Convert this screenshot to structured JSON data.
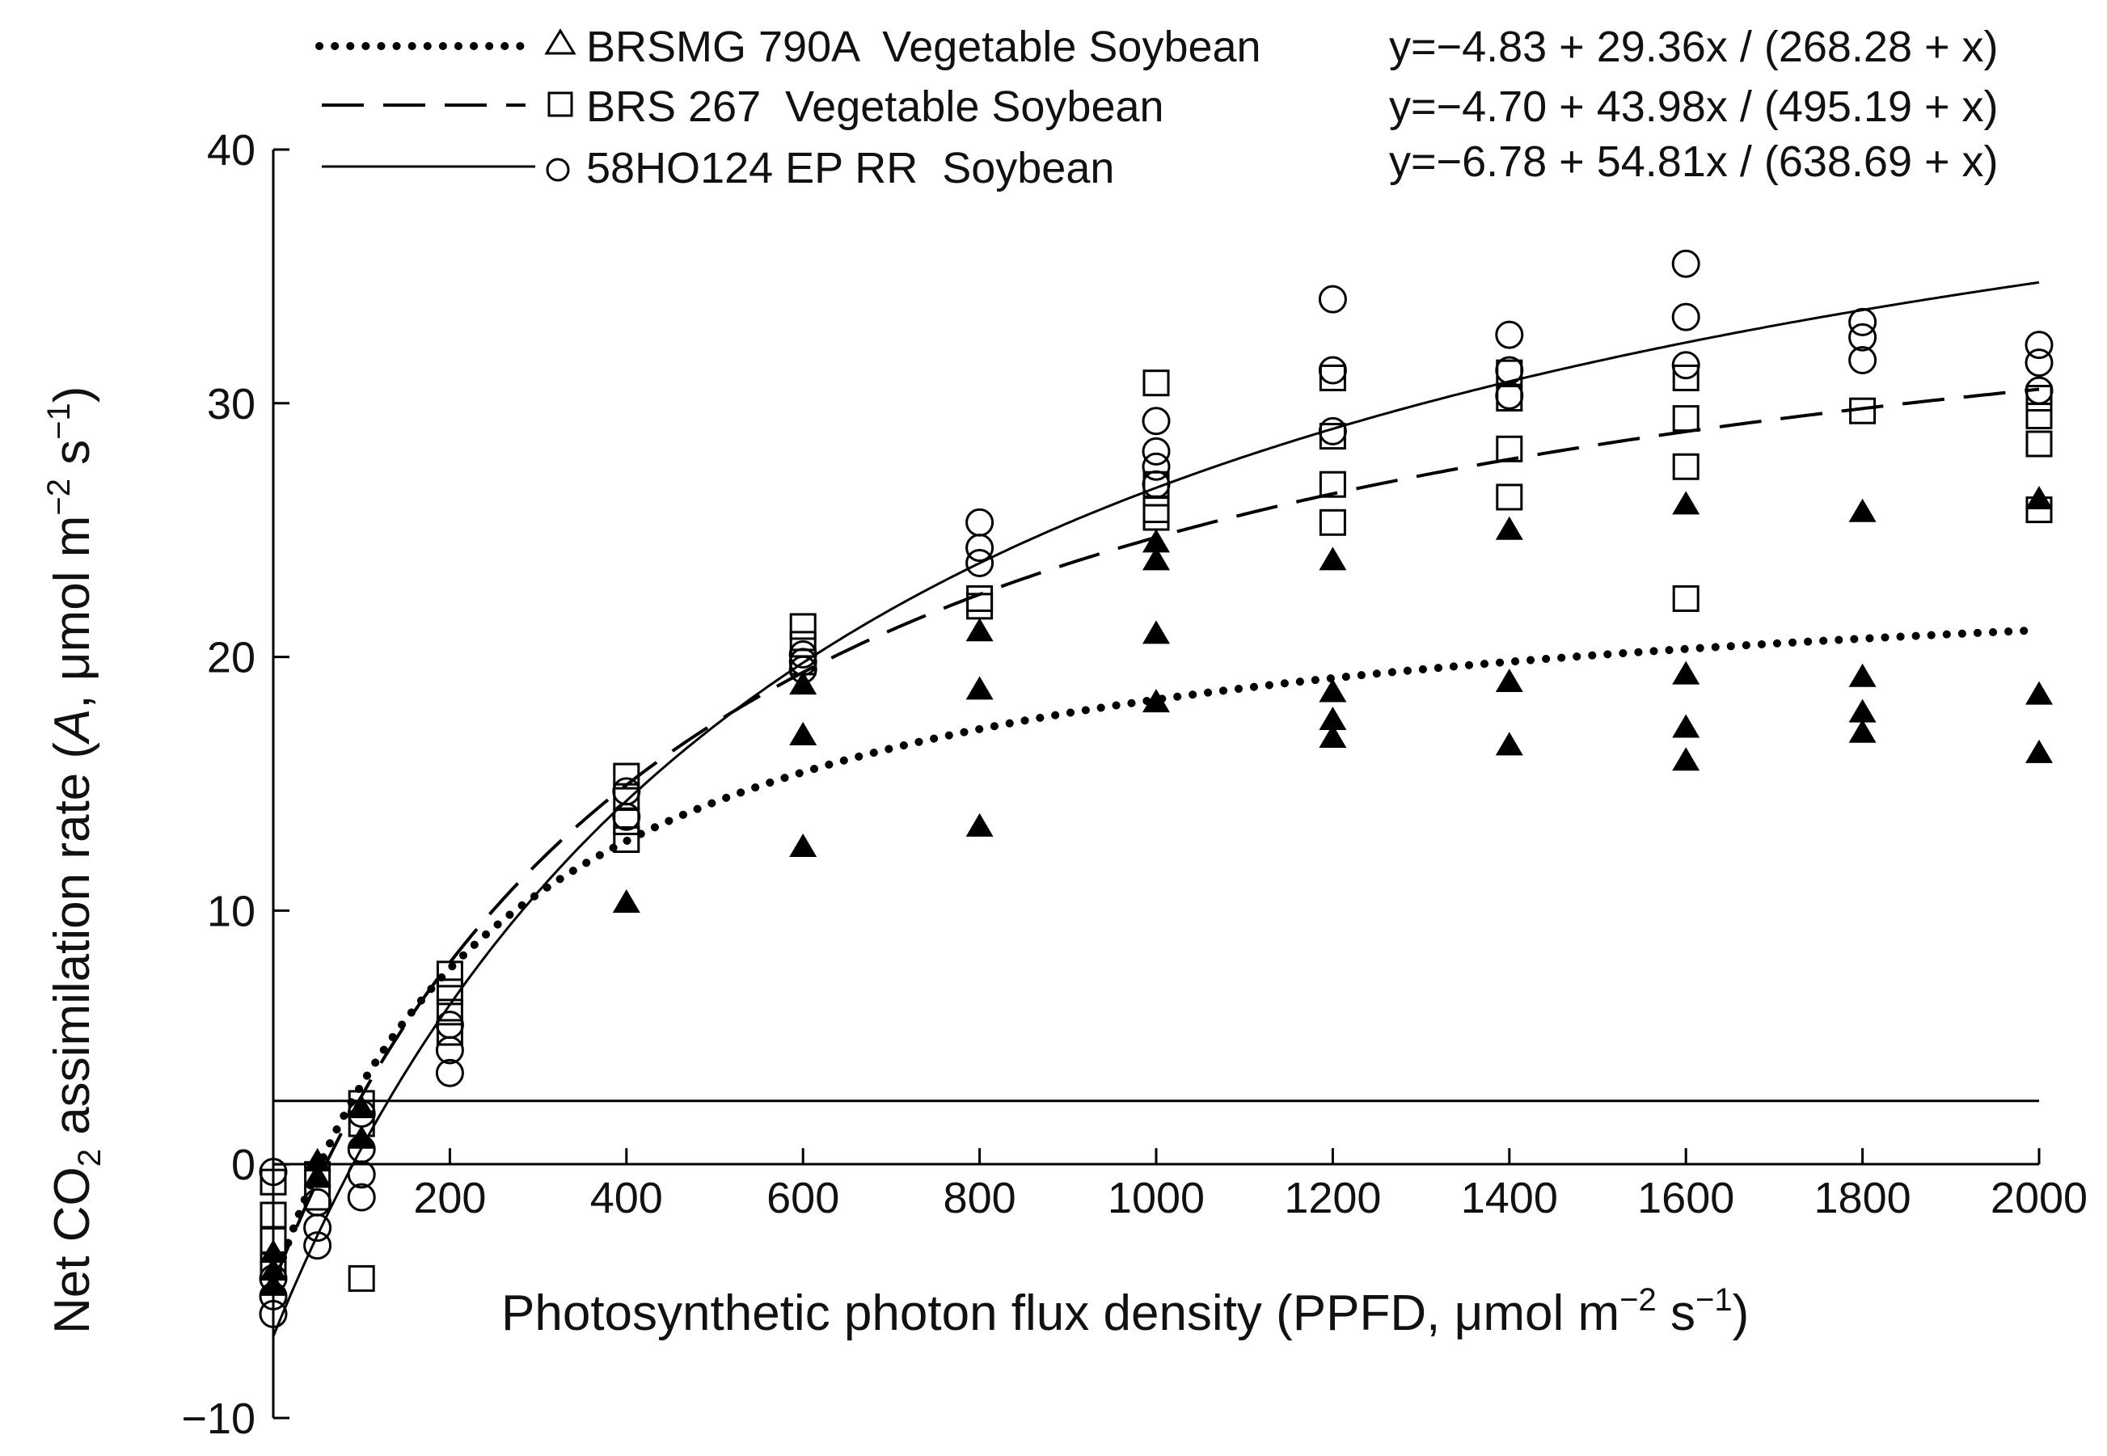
{
  "chart_data": {
    "type": "scatter",
    "xlabel": {
      "part1": "Photosynthetic photon flux density (PPFD, μmol m",
      "exp1": "−2",
      "part2": " s",
      "exp2": "−1",
      "part3": ")"
    },
    "ylabel": {
      "part1": "Net CO",
      "sub": "2",
      "part2": " assimilation rate (",
      "italic": "A",
      "part3": ", μmol m",
      "exp1": "−2",
      "part4": " s",
      "exp2": "−1",
      "part5": ")"
    },
    "xlim": [
      0,
      2000
    ],
    "ylim": [
      -10,
      40
    ],
    "xticks": [
      200,
      400,
      600,
      800,
      1000,
      1200,
      1400,
      1600,
      1800,
      2000
    ],
    "xtick_labels": [
      "200",
      "400",
      "600",
      "800",
      "1000",
      "1200",
      "1400",
      "1600",
      "1800",
      "2000"
    ],
    "yticks": [
      -10,
      0,
      10,
      20,
      30,
      40
    ],
    "ytick_labels": [
      "−10",
      "0",
      "10",
      "20",
      "30",
      "40"
    ],
    "reference_line_y": 2.5,
    "legend_position": "top",
    "series": [
      {
        "name": "BRSMG 790A  Vegetable Soybean",
        "marker": "filled-triangle",
        "legend_marker": "open-triangle",
        "line_style": "dotted",
        "equation": "y=−4.83 + 29.36x / (268.28 + x)",
        "fit": {
          "a": -4.83,
          "b": 29.36,
          "c": 268.28
        },
        "points": [
          [
            0,
            -3.5
          ],
          [
            0,
            -4.2
          ],
          [
            0,
            -4.8
          ],
          [
            50,
            0.1
          ],
          [
            50,
            -0.5
          ],
          [
            100,
            1.0
          ],
          [
            100,
            2.2
          ],
          [
            400,
            10.3
          ],
          [
            600,
            12.5
          ],
          [
            600,
            16.9
          ],
          [
            600,
            18.9
          ],
          [
            800,
            13.3
          ],
          [
            800,
            18.7
          ],
          [
            800,
            21.0
          ],
          [
            1000,
            18.2
          ],
          [
            1000,
            20.9
          ],
          [
            1000,
            23.8
          ],
          [
            1000,
            24.5
          ],
          [
            1200,
            16.8
          ],
          [
            1200,
            17.5
          ],
          [
            1200,
            18.6
          ],
          [
            1200,
            23.8
          ],
          [
            1400,
            16.5
          ],
          [
            1400,
            19.0
          ],
          [
            1400,
            25.0
          ],
          [
            1600,
            15.9
          ],
          [
            1600,
            17.2
          ],
          [
            1600,
            19.3
          ],
          [
            1600,
            26.0
          ],
          [
            1800,
            17.0
          ],
          [
            1800,
            17.8
          ],
          [
            1800,
            19.2
          ],
          [
            1800,
            25.7
          ],
          [
            2000,
            16.2
          ],
          [
            2000,
            18.5
          ],
          [
            2000,
            26.2
          ]
        ]
      },
      {
        "name": "BRS 267  Vegetable Soybean",
        "marker": "open-square",
        "legend_marker": "open-square",
        "line_style": "dashed",
        "equation": "y=−4.70 + 43.98x / (495.19 + x)",
        "fit": {
          "a": -4.7,
          "b": 43.98,
          "c": 495.19
        },
        "points": [
          [
            0,
            -0.7
          ],
          [
            0,
            -2.0
          ],
          [
            0,
            -3.0
          ],
          [
            0,
            -4.0
          ],
          [
            50,
            -0.4
          ],
          [
            50,
            -1.3
          ],
          [
            100,
            2.4
          ],
          [
            100,
            1.6
          ],
          [
            100,
            -4.5
          ],
          [
            200,
            7.5
          ],
          [
            200,
            6.8
          ],
          [
            200,
            6.0
          ],
          [
            200,
            5.2
          ],
          [
            400,
            15.3
          ],
          [
            400,
            14.5
          ],
          [
            400,
            13.5
          ],
          [
            400,
            12.8
          ],
          [
            600,
            21.2
          ],
          [
            600,
            20.5
          ],
          [
            600,
            19.8
          ],
          [
            800,
            22.0
          ],
          [
            800,
            22.3
          ],
          [
            1000,
            30.8
          ],
          [
            1000,
            26.8
          ],
          [
            1000,
            25.8
          ],
          [
            1000,
            25.5
          ],
          [
            1200,
            31.0
          ],
          [
            1200,
            28.7
          ],
          [
            1200,
            26.8
          ],
          [
            1200,
            25.3
          ],
          [
            1400,
            31.2
          ],
          [
            1400,
            30.2
          ],
          [
            1400,
            28.2
          ],
          [
            1400,
            26.3
          ],
          [
            1600,
            31.0
          ],
          [
            1600,
            29.4
          ],
          [
            1600,
            27.5
          ],
          [
            1600,
            22.3
          ],
          [
            1800,
            29.7
          ],
          [
            2000,
            30.2
          ],
          [
            2000,
            28.4
          ],
          [
            2000,
            29.5
          ],
          [
            2000,
            25.8
          ]
        ]
      },
      {
        "name": "58HO124 EP RR  Soybean",
        "marker": "open-circle",
        "legend_marker": "open-circle",
        "line_style": "solid",
        "equation": "y=−6.78 + 54.81x / (638.69 + x)",
        "fit": {
          "a": -6.78,
          "b": 54.81,
          "c": 638.69
        },
        "points": [
          [
            0,
            -0.3
          ],
          [
            0,
            -4.5
          ],
          [
            0,
            -5.2
          ],
          [
            0,
            -5.9
          ],
          [
            50,
            -1.5
          ],
          [
            50,
            -2.5
          ],
          [
            50,
            -3.2
          ],
          [
            100,
            -0.4
          ],
          [
            100,
            -1.3
          ],
          [
            100,
            0.6
          ],
          [
            100,
            2.0
          ],
          [
            200,
            3.6
          ],
          [
            200,
            4.5
          ],
          [
            200,
            5.5
          ],
          [
            400,
            13.7
          ],
          [
            400,
            14.7
          ],
          [
            600,
            19.5
          ],
          [
            600,
            19.8
          ],
          [
            600,
            20.1
          ],
          [
            800,
            23.7
          ],
          [
            800,
            24.3
          ],
          [
            800,
            25.3
          ],
          [
            1000,
            26.8
          ],
          [
            1000,
            27.5
          ],
          [
            1000,
            28.1
          ],
          [
            1000,
            29.3
          ],
          [
            1200,
            28.9
          ],
          [
            1200,
            31.3
          ],
          [
            1200,
            34.1
          ],
          [
            1400,
            30.3
          ],
          [
            1400,
            31.3
          ],
          [
            1400,
            32.7
          ],
          [
            1600,
            31.5
          ],
          [
            1600,
            33.4
          ],
          [
            1600,
            35.5
          ],
          [
            1800,
            31.7
          ],
          [
            1800,
            32.6
          ],
          [
            1800,
            33.2
          ],
          [
            2000,
            30.5
          ],
          [
            2000,
            31.6
          ],
          [
            2000,
            32.3
          ]
        ]
      }
    ]
  }
}
